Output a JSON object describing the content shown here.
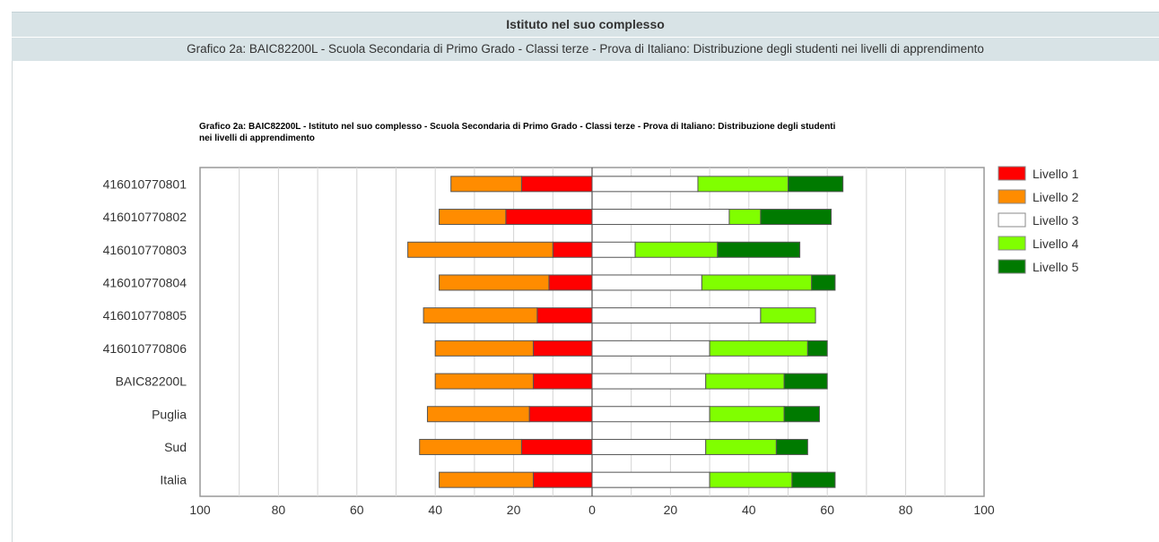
{
  "header": {
    "section_title": "Istituto nel suo complesso",
    "subtitle": "Grafico 2a: BAIC82200L - Scuola Secondaria di Primo Grado - Classi terze - Prova di Italiano: Distribuzione degli studenti nei livelli di apprendimento"
  },
  "chart_data": {
    "type": "bar",
    "orientation": "horizontal",
    "stacked": "diverging",
    "title_lines": [
      "Grafico 2a: BAIC82200L - Istituto nel suo complesso - Scuola Secondaria di Primo Grado - Classi terze - Prova di Italiano: Distribuzione degli studenti",
      "nei livelli di apprendimento"
    ],
    "categories": [
      "416010770801",
      "416010770802",
      "416010770803",
      "416010770804",
      "416010770805",
      "416010770806",
      "BAIC82200L",
      "Puglia",
      "Sud",
      "Italia"
    ],
    "series": [
      {
        "name": "Livello 1",
        "color": "#ff0000",
        "side": "left",
        "values": [
          18,
          22,
          10,
          11,
          14,
          15,
          15,
          16,
          18,
          15
        ]
      },
      {
        "name": "Livello 2",
        "color": "#ff8c00",
        "side": "left",
        "values": [
          18,
          17,
          37,
          28,
          29,
          25,
          25,
          26,
          26,
          24
        ]
      },
      {
        "name": "Livello 3",
        "color": "#ffffff",
        "side": "right",
        "values": [
          27,
          35,
          11,
          28,
          43,
          30,
          29,
          30,
          29,
          30
        ]
      },
      {
        "name": "Livello 4",
        "color": "#80ff00",
        "side": "right",
        "values": [
          23,
          8,
          21,
          28,
          14,
          25,
          20,
          19,
          18,
          21
        ]
      },
      {
        "name": "Livello 5",
        "color": "#007a00",
        "side": "right",
        "values": [
          14,
          18,
          21,
          6,
          0,
          5,
          11,
          9,
          8,
          11
        ]
      }
    ],
    "xticks": [
      "100",
      "80",
      "60",
      "40",
      "20",
      "0",
      "20",
      "40",
      "60",
      "80",
      "100"
    ],
    "xlim": [
      -100,
      100
    ],
    "grid": true,
    "legend_position": "right"
  }
}
